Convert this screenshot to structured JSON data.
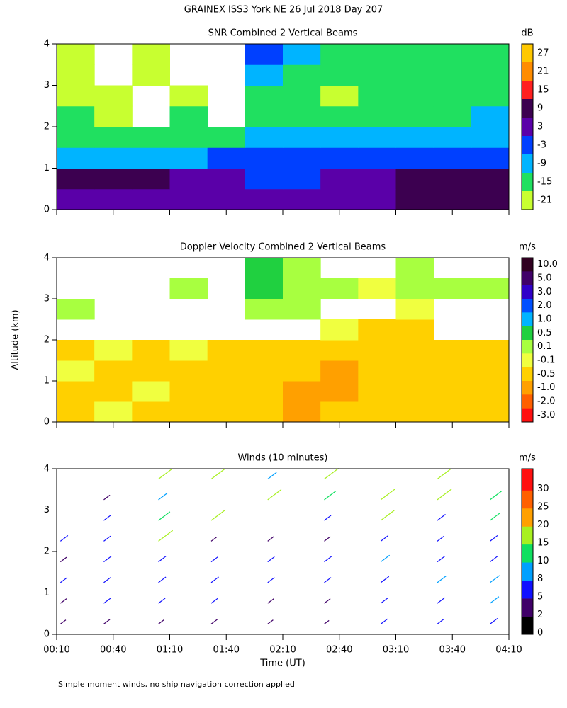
{
  "title": "GRAINEX ISS3 York NE  26 Jul 2018 Day 207",
  "y_axis_label": "Altitude (km)",
  "x_axis_label": "Time (UT)",
  "footnote": "Simple moment winds, no ship navigation correction applied",
  "chart_data": [
    {
      "type": "heatmap",
      "title": "SNR Combined 2 Vertical Beams",
      "units": "dB",
      "x": [
        20,
        40,
        60,
        80,
        100,
        120,
        140,
        160,
        180,
        200,
        220,
        240
      ],
      "y": [
        0.25,
        0.75,
        1.25,
        1.75,
        2.25,
        2.75,
        3.25,
        3.75
      ],
      "z": [
        [
          3,
          3,
          3,
          3,
          3,
          3,
          3,
          3,
          3,
          9,
          9,
          9
        ],
        [
          9,
          9,
          9,
          3,
          3,
          -3,
          -3,
          3,
          3,
          9,
          9,
          9
        ],
        [
          -9,
          -9,
          -9,
          -9,
          -3,
          -3,
          -3,
          -3,
          -3,
          -3,
          -3,
          -3
        ],
        [
          -15,
          -15,
          -15,
          -15,
          -15,
          -9,
          -9,
          -9,
          -9,
          -9,
          -9,
          -9
        ],
        [
          -15,
          -21,
          null,
          -15,
          null,
          -15,
          -15,
          -15,
          -15,
          -15,
          -15,
          -9
        ],
        [
          -21,
          -21,
          null,
          -21,
          null,
          -15,
          -15,
          -21,
          -15,
          -15,
          -15,
          -15
        ],
        [
          -21,
          null,
          -21,
          null,
          null,
          -9,
          -15,
          -15,
          -15,
          -15,
          -15,
          -15
        ],
        [
          -21,
          null,
          -21,
          null,
          null,
          -3,
          -9,
          -15,
          -15,
          -15,
          -15,
          -15
        ]
      ],
      "ylim": [
        0,
        4
      ],
      "yticks": [
        0,
        1,
        2,
        3,
        4
      ],
      "colorbar": {
        "ticks": [
          27,
          21,
          15,
          9,
          3,
          -3,
          -9,
          -15,
          -21
        ],
        "colors": [
          "#ffc800",
          "#ff8c00",
          "#ff2020",
          "#3c0050",
          "#5a00a8",
          "#0040ff",
          "#00b4ff",
          "#20e060",
          "#c8ff30"
        ]
      }
    },
    {
      "type": "heatmap",
      "title": "Doppler Velocity Combined 2 Vertical Beams",
      "units": "m/s",
      "x": [
        20,
        40,
        60,
        80,
        100,
        120,
        140,
        160,
        180,
        200,
        220,
        240
      ],
      "y": [
        0.25,
        0.75,
        1.25,
        1.75,
        2.25,
        2.75,
        3.25,
        3.75
      ],
      "z": [
        [
          -0.5,
          -0.1,
          -0.5,
          -0.5,
          -0.5,
          -0.5,
          -1.0,
          -0.5,
          -0.5,
          -0.5,
          -0.5,
          -0.5
        ],
        [
          -0.5,
          -0.5,
          -0.1,
          -0.5,
          -0.5,
          -0.5,
          -1.0,
          -1.0,
          -0.5,
          -0.5,
          -0.5,
          -0.5
        ],
        [
          -0.1,
          -0.5,
          -0.5,
          -0.5,
          -0.5,
          -0.5,
          -0.5,
          -1.0,
          -0.5,
          -0.5,
          -0.5,
          -0.5
        ],
        [
          -0.5,
          -0.1,
          -0.5,
          -0.1,
          -0.5,
          -0.5,
          -0.5,
          -0.5,
          -0.5,
          -0.5,
          -0.5,
          -0.5
        ],
        [
          null,
          null,
          null,
          null,
          null,
          null,
          null,
          -0.1,
          -0.5,
          -0.5,
          null,
          null
        ],
        [
          0.1,
          null,
          null,
          null,
          null,
          0.1,
          0.1,
          null,
          null,
          -0.1,
          null,
          null
        ],
        [
          null,
          null,
          null,
          0.1,
          null,
          0.5,
          0.1,
          0.1,
          -0.1,
          0.1,
          0.1,
          0.1
        ],
        [
          null,
          null,
          null,
          null,
          null,
          0.5,
          0.1,
          null,
          null,
          0.1,
          null,
          null
        ]
      ],
      "ylim": [
        0,
        4
      ],
      "yticks": [
        0,
        1,
        2,
        3,
        4
      ],
      "colorbar": {
        "ticks": [
          {
            "value": 10,
            "label": "10.0"
          },
          {
            "value": 5,
            "label": "5.0"
          },
          {
            "value": 3,
            "label": "3.0"
          },
          {
            "value": 2,
            "label": "2.0"
          },
          {
            "value": 1,
            "label": "1.0"
          },
          0.5,
          0.1,
          -0.1,
          -0.5,
          {
            "value": -1,
            "label": "-1.0"
          },
          {
            "value": -2,
            "label": "-2.0"
          },
          {
            "value": -3,
            "label": "-3.0"
          }
        ],
        "colors": [
          "#300020",
          "#400068",
          "#3000c8",
          "#0050ff",
          "#00b4ff",
          "#20d040",
          "#a8ff40",
          "#f0ff40",
          "#ffd000",
          "#ffa000",
          "#ff6000",
          "#ff1010"
        ]
      }
    },
    {
      "type": "winds",
      "title": "Winds (10 minutes)",
      "units": "m/s",
      "altitudes": [
        0.25,
        0.75,
        1.25,
        1.75,
        2.25,
        2.75,
        3.25,
        3.75
      ],
      "profiles": [
        {
          "x": 12,
          "values": [
            3,
            4,
            5,
            4,
            6,
            null,
            null,
            null
          ]
        },
        {
          "x": 35,
          "values": [
            4,
            5,
            5,
            6,
            5,
            6,
            4,
            null
          ]
        },
        {
          "x": 64,
          "values": [
            3,
            5,
            6,
            6,
            16,
            12,
            8,
            15
          ]
        },
        {
          "x": 92,
          "values": [
            4,
            5,
            6,
            5,
            3,
            16,
            null,
            15
          ]
        },
        {
          "x": 122,
          "values": [
            3,
            4,
            5,
            5,
            4,
            null,
            15,
            8
          ]
        },
        {
          "x": 152,
          "values": [
            2,
            4,
            5,
            6,
            4,
            5,
            12,
            16
          ]
        },
        {
          "x": 182,
          "values": [
            5,
            6,
            7,
            8,
            6,
            15,
            16,
            null
          ]
        },
        {
          "x": 212,
          "values": [
            5,
            6,
            8,
            6,
            5,
            7,
            16,
            15
          ]
        },
        {
          "x": 240,
          "values": [
            6,
            8,
            9,
            6,
            6,
            10,
            12,
            null
          ]
        }
      ],
      "xlim": [
        10,
        250
      ],
      "xticks": [
        {
          "value": 10,
          "label": "00:10"
        },
        {
          "value": 40,
          "label": "00:40"
        },
        {
          "value": 70,
          "label": "01:10"
        },
        {
          "value": 100,
          "label": "01:40"
        },
        {
          "value": 130,
          "label": "02:10"
        },
        {
          "value": 160,
          "label": "02:40"
        },
        {
          "value": 190,
          "label": "03:10"
        },
        {
          "value": 220,
          "label": "03:40"
        },
        {
          "value": 250,
          "label": "04:10"
        }
      ],
      "ylim": [
        0,
        4
      ],
      "yticks": [
        0,
        1,
        2,
        3,
        4
      ],
      "colorbar": {
        "ticks": [
          0,
          2,
          5,
          8,
          10,
          15,
          20,
          25,
          30
        ],
        "colors": [
          "#000000",
          "#400068",
          "#1010ff",
          "#00a0ff",
          "#10e060",
          "#a8f020",
          "#ffa000",
          "#ff6000",
          "#ff1010"
        ]
      }
    }
  ]
}
